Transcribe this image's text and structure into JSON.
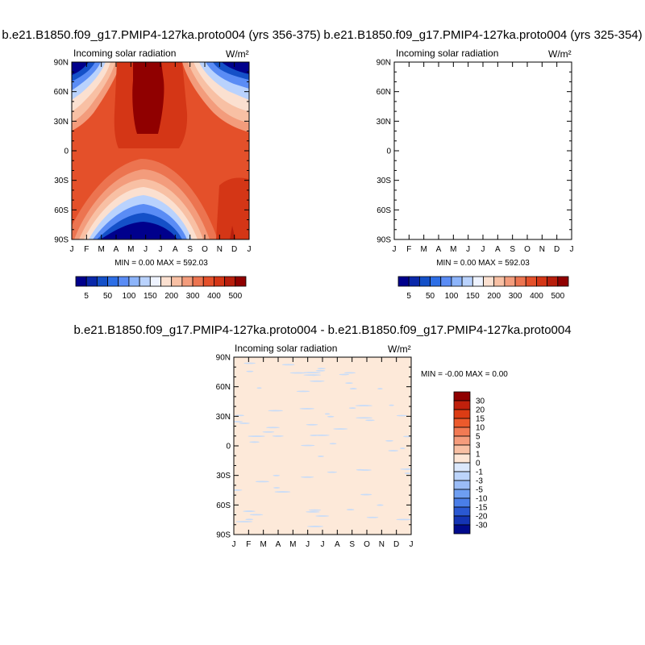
{
  "chart_data": [
    {
      "type": "heatmap",
      "title": "b.e21.B1850.f09_g17.PMIP4-127ka.proto004 (yrs 356-375)",
      "left_label": "Incoming solar radiation",
      "units": "W/m²",
      "xlabel": "",
      "ylabel": "",
      "x_ticks": [
        "J",
        "F",
        "M",
        "A",
        "M",
        "J",
        "J",
        "A",
        "S",
        "O",
        "N",
        "D",
        "J"
      ],
      "y_ticks": [
        "90N",
        "60N",
        "30N",
        "0",
        "30S",
        "60S",
        "90S"
      ],
      "stats": "MIN =   0.00 MAX = 592.03",
      "colorbar_labels": [
        "5",
        "50",
        "100",
        "150",
        "200",
        "300",
        "400",
        "500"
      ],
      "colorbar_orientation": "horizontal",
      "colors": [
        "#00008c",
        "#0a28aa",
        "#1450c8",
        "#2d6ee6",
        "#5a8cf5",
        "#8cb4fa",
        "#b9d2fd",
        "#eef3ff",
        "#fbe0d0",
        "#f8c0a4",
        "#f39c7c",
        "#ec7450",
        "#e4502a",
        "#d43616",
        "#b81e0c",
        "#900000"
      ]
    },
    {
      "type": "heatmap",
      "title": "b.e21.B1850.f09_g17.PMIP4-127ka.proto004 (yrs 325-354)",
      "left_label": "Incoming solar radiation",
      "units": "W/m²",
      "xlabel": "",
      "ylabel": "",
      "x_ticks": [
        "J",
        "F",
        "M",
        "A",
        "M",
        "J",
        "J",
        "A",
        "S",
        "O",
        "N",
        "D",
        "J"
      ],
      "y_ticks": [
        "90N",
        "60N",
        "30N",
        "0",
        "30S",
        "60S",
        "90S"
      ],
      "stats": "MIN =   0.00 MAX = 592.03",
      "colorbar_labels": [
        "5",
        "50",
        "100",
        "150",
        "200",
        "300",
        "400",
        "500"
      ],
      "colorbar_orientation": "horizontal",
      "colors": [
        "#00008c",
        "#0a28aa",
        "#1450c8",
        "#2d6ee6",
        "#5a8cf5",
        "#8cb4fa",
        "#b9d2fd",
        "#eef3ff",
        "#fbe0d0",
        "#f8c0a4",
        "#f39c7c",
        "#ec7450",
        "#e4502a",
        "#d43616",
        "#b81e0c",
        "#900000"
      ]
    },
    {
      "type": "heatmap",
      "title": "b.e21.B1850.f09_g17.PMIP4-127ka.proto004 - b.e21.B1850.f09_g17.PMIP4-127ka.proto004",
      "left_label": "Incoming solar radiation",
      "units": "W/m²",
      "xlabel": "",
      "ylabel": "",
      "x_ticks": [
        "J",
        "F",
        "M",
        "A",
        "M",
        "J",
        "J",
        "A",
        "S",
        "O",
        "N",
        "D",
        "J"
      ],
      "y_ticks": [
        "90N",
        "60N",
        "30N",
        "0",
        "30S",
        "60S",
        "90S"
      ],
      "stats": "MIN =  -0.00 MAX =   0.00",
      "colorbar_labels": [
        "30",
        "20",
        "15",
        "10",
        "5",
        "3",
        "1",
        "0",
        "-1",
        "-3",
        "-5",
        "-10",
        "-15",
        "-20",
        "-30"
      ],
      "colorbar_orientation": "vertical",
      "colors": [
        "#900000",
        "#c0200c",
        "#dc3c14",
        "#ec5a2c",
        "#f27a54",
        "#f59c7c",
        "#f8c0a4",
        "#fde6d6",
        "#dbe8fc",
        "#bcd4fb",
        "#9abcf7",
        "#6e9ef2",
        "#4a7ee8",
        "#2a58d2",
        "#1434b4",
        "#000a8c"
      ],
      "field_color": "#fde9d9",
      "speckle_color": "#c8dcf8"
    }
  ]
}
